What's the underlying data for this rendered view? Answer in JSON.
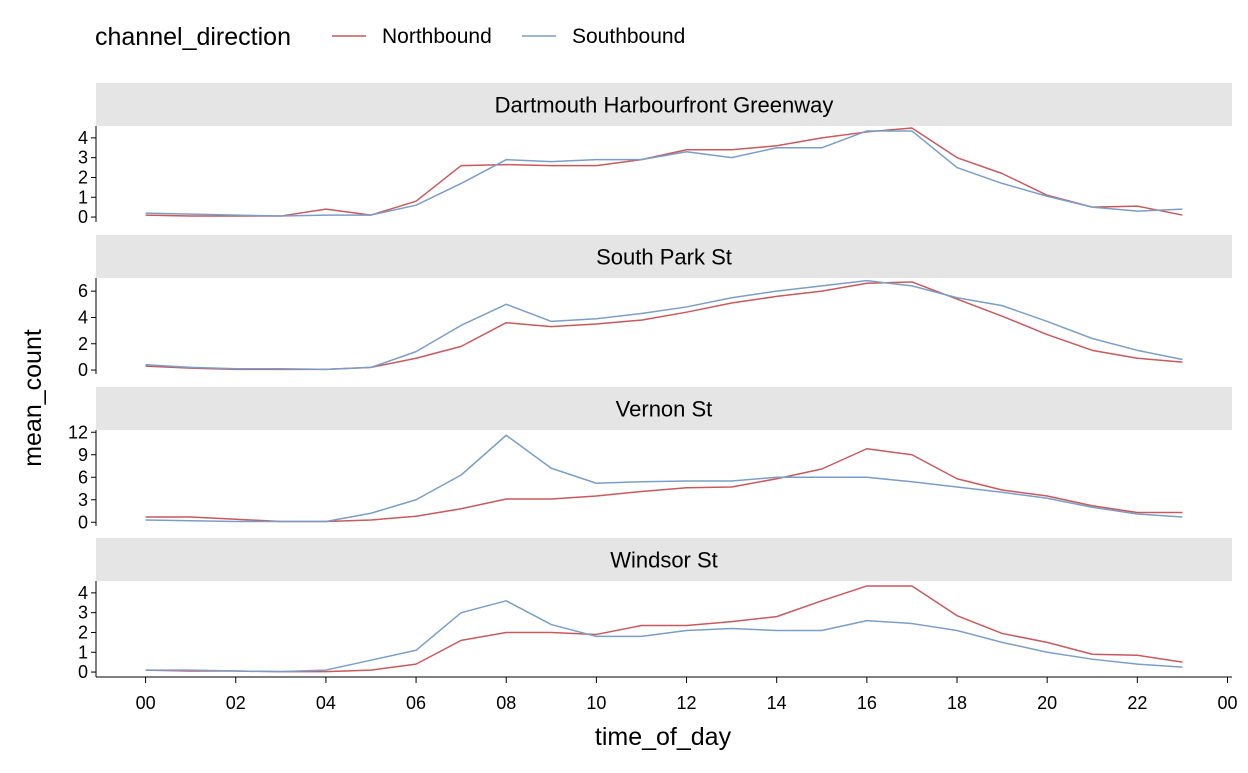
{
  "chart_data": {
    "type": "line",
    "xlabel": "time_of_day",
    "ylabel": "mean_count",
    "x_tick_labels": [
      "00",
      "02",
      "04",
      "06",
      "08",
      "10",
      "12",
      "14",
      "16",
      "18",
      "20",
      "22",
      "00"
    ],
    "x": [
      0,
      1,
      2,
      3,
      4,
      5,
      6,
      7,
      8,
      9,
      10,
      11,
      12,
      13,
      14,
      15,
      16,
      17,
      18,
      19,
      20,
      21,
      22,
      23
    ],
    "xlim": [
      -1.1,
      24.1
    ],
    "legend": {
      "title": "channel_direction",
      "position": "top-left",
      "entries": [
        "Northbound",
        "Southbound"
      ]
    },
    "series_colors": {
      "Northbound": "#c9595d",
      "Southbound": "#7b9ec7"
    },
    "grid": false,
    "panels": [
      {
        "title": "Dartmouth Harbourfront Greenway",
        "ylim": [
          -0.25,
          4.6
        ],
        "yticks": [
          0,
          1,
          2,
          3,
          4
        ],
        "series": [
          {
            "name": "Northbound",
            "values": [
              0.1,
              0.05,
              0.05,
              0.05,
              0.4,
              0.1,
              0.8,
              2.6,
              2.65,
              2.6,
              2.6,
              2.9,
              3.4,
              3.4,
              3.6,
              4.0,
              4.3,
              4.5,
              3.0,
              2.2,
              1.1,
              0.5,
              0.55,
              0.1
            ]
          },
          {
            "name": "Southbound",
            "values": [
              0.2,
              0.15,
              0.1,
              0.05,
              0.1,
              0.1,
              0.6,
              1.7,
              2.9,
              2.8,
              2.9,
              2.9,
              3.3,
              3.0,
              3.5,
              3.5,
              4.35,
              4.35,
              2.5,
              1.7,
              1.05,
              0.5,
              0.3,
              0.4
            ]
          }
        ]
      },
      {
        "title": "South Park St",
        "ylim": [
          -0.3,
          7.0
        ],
        "yticks": [
          0,
          2,
          4,
          6
        ],
        "series": [
          {
            "name": "Northbound",
            "values": [
              0.3,
              0.15,
              0.05,
              0.05,
              0.05,
              0.2,
              0.9,
              1.8,
              3.6,
              3.3,
              3.5,
              3.8,
              4.4,
              5.1,
              5.6,
              6.0,
              6.6,
              6.7,
              5.4,
              4.1,
              2.7,
              1.5,
              0.9,
              0.6
            ]
          },
          {
            "name": "Southbound",
            "values": [
              0.4,
              0.2,
              0.1,
              0.1,
              0.05,
              0.2,
              1.4,
              3.4,
              5.0,
              3.7,
              3.9,
              4.3,
              4.8,
              5.5,
              6.0,
              6.4,
              6.8,
              6.4,
              5.5,
              4.9,
              3.7,
              2.4,
              1.5,
              0.8
            ]
          }
        ]
      },
      {
        "title": "Vernon St",
        "ylim": [
          -0.5,
          12.3
        ],
        "yticks": [
          0,
          3,
          6,
          9,
          12
        ],
        "series": [
          {
            "name": "Northbound",
            "values": [
              0.7,
              0.7,
              0.4,
              0.1,
              0.1,
              0.3,
              0.8,
              1.8,
              3.1,
              3.1,
              3.5,
              4.1,
              4.6,
              4.7,
              5.8,
              7.1,
              9.8,
              9.0,
              5.8,
              4.3,
              3.5,
              2.2,
              1.3,
              1.3
            ]
          },
          {
            "name": "Southbound",
            "values": [
              0.3,
              0.2,
              0.1,
              0.1,
              0.1,
              1.2,
              3.0,
              6.3,
              11.6,
              7.2,
              5.2,
              5.4,
              5.5,
              5.5,
              6.0,
              6.0,
              6.0,
              5.4,
              4.7,
              4.0,
              3.2,
              2.0,
              1.1,
              0.7
            ]
          }
        ]
      },
      {
        "title": "Windsor St",
        "ylim": [
          -0.25,
          4.6
        ],
        "yticks": [
          0,
          1,
          2,
          3,
          4
        ],
        "series": [
          {
            "name": "Northbound",
            "values": [
              0.1,
              0.05,
              0.05,
              0.02,
              0.02,
              0.1,
              0.4,
              1.6,
              2.0,
              2.0,
              1.9,
              2.35,
              2.35,
              2.55,
              2.8,
              3.6,
              4.35,
              4.35,
              2.85,
              1.95,
              1.5,
              0.9,
              0.85,
              0.5
            ]
          },
          {
            "name": "Southbound",
            "values": [
              0.1,
              0.1,
              0.05,
              0.02,
              0.1,
              0.6,
              1.1,
              3.0,
              3.6,
              2.4,
              1.8,
              1.8,
              2.1,
              2.2,
              2.1,
              2.1,
              2.6,
              2.45,
              2.1,
              1.5,
              1.0,
              0.65,
              0.4,
              0.25
            ]
          }
        ]
      }
    ]
  }
}
